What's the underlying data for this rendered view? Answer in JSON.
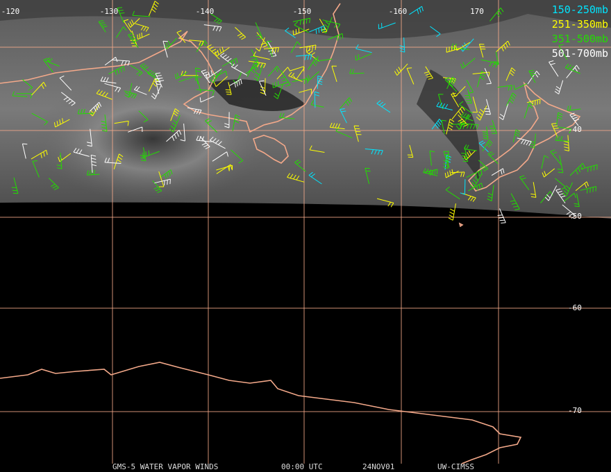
{
  "map": {
    "longitude_labels": [
      "-120",
      "-130",
      "-140",
      "-150",
      "-160",
      "170"
    ],
    "latitude_labels": [
      "-40",
      "-50",
      "-60",
      "-70"
    ],
    "legend": [
      {
        "label": "150-250mb",
        "color": "#00e5ff"
      },
      {
        "label": "251-350mb",
        "color": "#ffff00"
      },
      {
        "label": "351-500mb",
        "color": "#22dd00"
      },
      {
        "label": "501-700mb",
        "color": "#ffffff"
      }
    ],
    "footer": [
      "GMS-5 WATER VAPOR WINDS",
      "00:00 UTC",
      "24NOV01",
      "UW-CIMSS"
    ]
  }
}
